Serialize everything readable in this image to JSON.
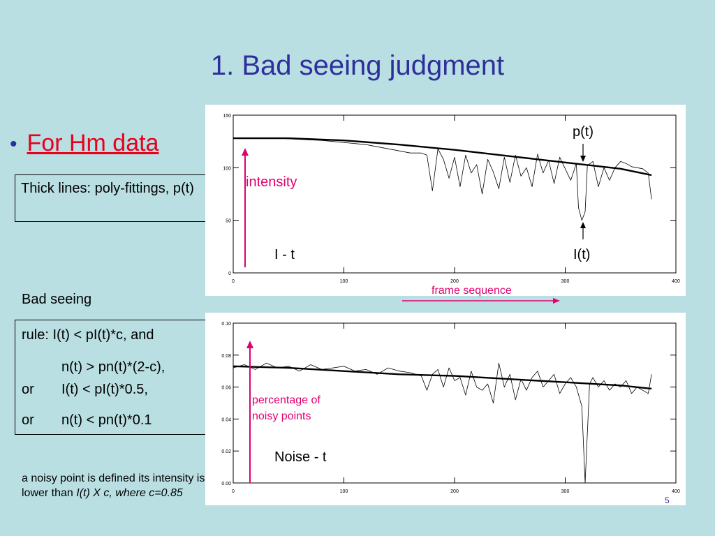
{
  "slide": {
    "title": "1. Bad seeing judgment",
    "bullet": "For Hm data",
    "fit_note": "Thick lines: poly-fittings, p(t)",
    "bad_seeing": "Bad seeing",
    "rule": {
      "line1": "rule: I(t) < pI(t)*c, and",
      "line2": "n(t) > pn(t)*(2-c),",
      "line3_or": "or",
      "line3": "I(t) < pI(t)*0.5,",
      "line4_or": "or",
      "line4": "n(t) < pn(t)*0.1"
    },
    "note": {
      "text": "a noisy point is defined its intensity is lower than ",
      "italic": "I(t) X c, where c=0.85"
    },
    "slide_number": "5"
  },
  "annotations": {
    "intensity": "intensity",
    "i_t_label": "I - t",
    "p_t": "p(t)",
    "I_t": "I(t)",
    "frame_sequence": "frame sequence",
    "percentage": "percentage of",
    "noisy_points": "noisy points",
    "noise_t": "Noise - t"
  },
  "colors": {
    "background": "#b9dfe2",
    "title": "#2e2f9c",
    "bullet_text": "#e8001c",
    "annotation": "#e0006f"
  },
  "chart_data": [
    {
      "type": "line",
      "xlim": [
        0,
        400
      ],
      "ylim": [
        0,
        150
      ],
      "x_ticks": [
        "0",
        "100",
        "200",
        "300",
        "400"
      ],
      "y_ticks": [
        "0",
        "50",
        "100",
        "150"
      ],
      "series": [
        {
          "style": "thin",
          "x": [
            0,
            20,
            40,
            60,
            80,
            100,
            120,
            140,
            160,
            170,
            175,
            180,
            185,
            190,
            195,
            200,
            205,
            210,
            215,
            220,
            225,
            230,
            235,
            240,
            245,
            250,
            255,
            260,
            265,
            270,
            275,
            280,
            285,
            290,
            295,
            300,
            305,
            310,
            312,
            315,
            318,
            320,
            325,
            330,
            335,
            340,
            345,
            350,
            355,
            360,
            365,
            370,
            375,
            378
          ],
          "y": [
            128,
            128,
            128,
            127,
            126,
            124,
            122,
            118,
            114,
            114,
            112,
            78,
            118,
            108,
            90,
            110,
            82,
            112,
            95,
            103,
            75,
            108,
            96,
            80,
            110,
            86,
            112,
            92,
            100,
            82,
            113,
            95,
            107,
            85,
            110,
            99,
            88,
            104,
            62,
            50,
            58,
            102,
            106,
            82,
            100,
            88,
            100,
            106,
            104,
            101,
            100,
            99,
            95,
            70
          ]
        },
        {
          "style": "thick",
          "x": [
            0,
            50,
            100,
            150,
            200,
            250,
            300,
            350,
            378
          ],
          "y": [
            128,
            128,
            126,
            122,
            117,
            111,
            105,
            99,
            93
          ]
        }
      ]
    },
    {
      "type": "line",
      "xlim": [
        0,
        400
      ],
      "ylim": [
        0,
        0.1
      ],
      "x_ticks": [
        "0",
        "100",
        "200",
        "300",
        "400"
      ],
      "y_ticks": [
        "0.00",
        "0.02",
        "0.04",
        "0.06",
        "0.08",
        "0.10"
      ],
      "series": [
        {
          "style": "thin",
          "x": [
            0,
            10,
            20,
            30,
            40,
            50,
            60,
            70,
            80,
            90,
            100,
            110,
            120,
            130,
            140,
            150,
            160,
            170,
            175,
            180,
            185,
            190,
            195,
            200,
            205,
            210,
            215,
            220,
            225,
            230,
            235,
            240,
            245,
            250,
            255,
            260,
            265,
            270,
            275,
            280,
            285,
            290,
            295,
            300,
            305,
            310,
            315,
            318,
            322,
            325,
            330,
            335,
            340,
            345,
            350,
            355,
            360,
            365,
            370,
            375,
            378
          ],
          "y": [
            0.072,
            0.074,
            0.071,
            0.075,
            0.072,
            0.073,
            0.07,
            0.074,
            0.071,
            0.072,
            0.073,
            0.07,
            0.071,
            0.068,
            0.072,
            0.07,
            0.069,
            0.067,
            0.058,
            0.068,
            0.071,
            0.06,
            0.072,
            0.064,
            0.066,
            0.055,
            0.07,
            0.06,
            0.058,
            0.062,
            0.05,
            0.075,
            0.06,
            0.068,
            0.052,
            0.065,
            0.058,
            0.066,
            0.07,
            0.06,
            0.064,
            0.068,
            0.056,
            0.062,
            0.066,
            0.06,
            0.048,
            0.0,
            0.062,
            0.066,
            0.06,
            0.064,
            0.058,
            0.062,
            0.06,
            0.064,
            0.056,
            0.06,
            0.058,
            0.056,
            0.068
          ]
        },
        {
          "style": "thick",
          "x": [
            0,
            50,
            100,
            150,
            200,
            250,
            300,
            350,
            378
          ],
          "y": [
            0.073,
            0.072,
            0.07,
            0.068,
            0.067,
            0.065,
            0.063,
            0.061,
            0.059
          ]
        }
      ]
    }
  ]
}
